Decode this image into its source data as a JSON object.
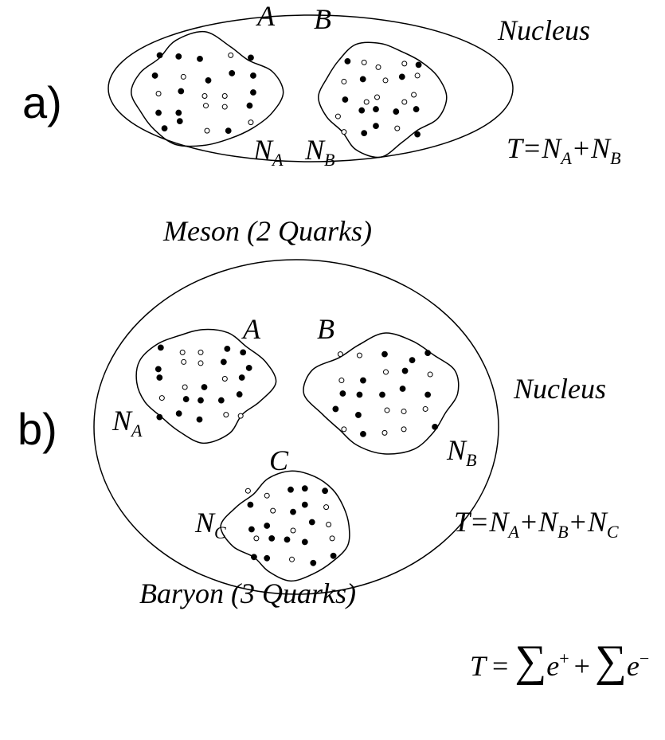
{
  "panel_a": {
    "label": "a)",
    "region": "Nucleus",
    "clusters": [
      {
        "name": "A",
        "count": {
          "symbol": "N",
          "sub": "A"
        }
      },
      {
        "name": "B",
        "count": {
          "symbol": "N",
          "sub": "B"
        }
      }
    ],
    "formula": [
      "T",
      "=",
      {
        "symbol": "N",
        "sub": "A"
      },
      "+",
      {
        "symbol": "N",
        "sub": "B"
      }
    ],
    "caption": "Meson (2 Quarks)"
  },
  "panel_b": {
    "label": "b)",
    "region": "Nucleus",
    "clusters": [
      {
        "name": "A",
        "count": {
          "symbol": "N",
          "sub": "A"
        }
      },
      {
        "name": "B",
        "count": {
          "symbol": "N",
          "sub": "B"
        }
      },
      {
        "name": "C",
        "count": {
          "symbol": "N",
          "sub": "C"
        }
      }
    ],
    "formula": [
      "T",
      "=",
      {
        "symbol": "N",
        "sub": "A"
      },
      "+",
      {
        "symbol": "N",
        "sub": "B"
      },
      "+",
      {
        "symbol": "N",
        "sub": "C"
      }
    ],
    "caption": "Baryon (3 Quarks)"
  },
  "total": [
    "T",
    "=",
    {
      "symbol": "∑",
      "term": "e",
      "sup": "+"
    },
    "+",
    {
      "symbol": "∑",
      "term": "e",
      "sup": "−"
    }
  ]
}
